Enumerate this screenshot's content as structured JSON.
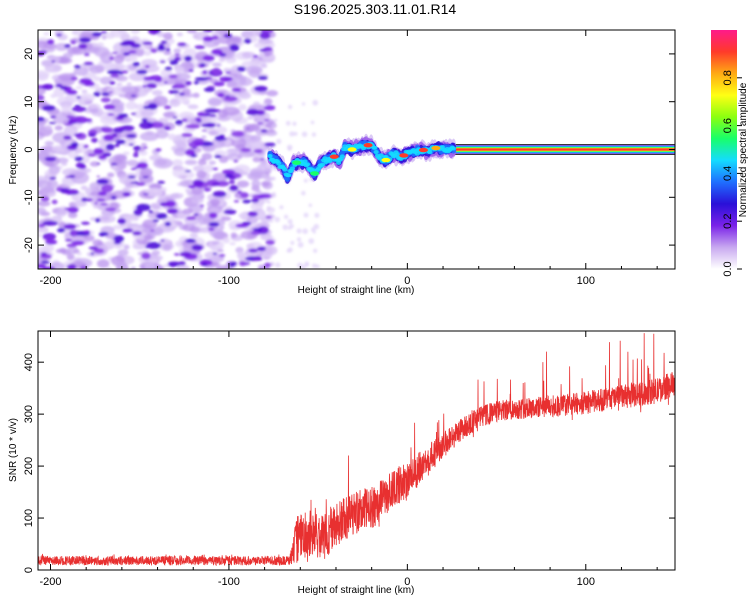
{
  "title": "S196.2025.303.11.01.R14",
  "chart_data": [
    {
      "type": "heatmap",
      "description_role": "spectrogram",
      "xlabel": "Height of straight line (km)",
      "ylabel": "Frequency (Hz)",
      "xlim": [
        -207,
        150
      ],
      "ylim": [
        -25,
        25
      ],
      "xticks": [
        -200,
        -100,
        0,
        100
      ],
      "yticks": [
        20,
        10,
        0,
        -10,
        -20
      ],
      "colorbar": {
        "label": "Normalized spectral amplitude",
        "range": [
          0,
          1
        ],
        "ticks": [
          0.0,
          0.2,
          0.4,
          0.6,
          0.8
        ],
        "tick_labels": [
          "0.0",
          "0.2",
          "0.4",
          "0.6",
          "0.8"
        ],
        "colors": [
          "#ffffff",
          "#c8a8f0",
          "#7a22e8",
          "#2a10d8",
          "#1f6fff",
          "#14dcff",
          "#18ff6a",
          "#8cff10",
          "#ffff14",
          "#ffaa14",
          "#ff3a2a",
          "#ff1a8a"
        ]
      },
      "noise_region_km": [
        -207,
        -78
      ],
      "carrier_ridge": [
        [
          -77,
          -1.5
        ],
        [
          -74,
          -2.2
        ],
        [
          -70,
          -3.5
        ],
        [
          -67,
          -6.0
        ],
        [
          -64,
          -3.0
        ],
        [
          -60,
          -2.5
        ],
        [
          -56,
          -3.0
        ],
        [
          -52,
          -5.0
        ],
        [
          -49,
          -3.0
        ],
        [
          -45,
          -2.0
        ],
        [
          -41,
          -1.5
        ],
        [
          -38,
          -2.5
        ],
        [
          -35,
          0.5
        ],
        [
          -31,
          0.0
        ],
        [
          -27,
          0.5
        ],
        [
          -24,
          1.0
        ],
        [
          -20,
          0.8
        ],
        [
          -16,
          -1.5
        ],
        [
          -12,
          -2.2
        ],
        [
          -8,
          -1.0
        ],
        [
          -4,
          -1.5
        ],
        [
          0,
          -1.0
        ],
        [
          4,
          -0.5
        ],
        [
          8,
          0.0
        ],
        [
          12,
          -0.5
        ],
        [
          16,
          0.3
        ],
        [
          20,
          0.0
        ],
        [
          24,
          0.0
        ],
        [
          150,
          0.0
        ]
      ]
    },
    {
      "type": "line",
      "xlabel": "Height of straight line (km)",
      "ylabel": "SNR (10 * v/v)",
      "xlim": [
        -207,
        150
      ],
      "ylim": [
        0,
        460
      ],
      "xticks": [
        -200,
        -100,
        0,
        100
      ],
      "yticks": [
        0,
        100,
        200,
        300,
        400
      ],
      "color": "#e83030",
      "trend": [
        [
          -207,
          18
        ],
        [
          -150,
          18
        ],
        [
          -100,
          18
        ],
        [
          -66,
          18
        ],
        [
          -62,
          60
        ],
        [
          -55,
          70
        ],
        [
          -48,
          60
        ],
        [
          -40,
          85
        ],
        [
          -30,
          110
        ],
        [
          -20,
          120
        ],
        [
          -10,
          150
        ],
        [
          0,
          175
        ],
        [
          10,
          205
        ],
        [
          20,
          240
        ],
        [
          30,
          270
        ],
        [
          40,
          293
        ],
        [
          50,
          305
        ],
        [
          60,
          310
        ],
        [
          70,
          312
        ],
        [
          80,
          315
        ],
        [
          90,
          318
        ],
        [
          100,
          322
        ],
        [
          110,
          328
        ],
        [
          120,
          333
        ],
        [
          130,
          338
        ],
        [
          140,
          345
        ],
        [
          150,
          360
        ]
      ],
      "noise_amplitude": [
        [
          -207,
          9
        ],
        [
          -66,
          9
        ],
        [
          -62,
          45
        ],
        [
          -40,
          45
        ],
        [
          -20,
          40
        ],
        [
          0,
          35
        ],
        [
          30,
          22
        ],
        [
          60,
          20
        ],
        [
          100,
          22
        ],
        [
          150,
          25
        ]
      ],
      "spike_amplitude": [
        [
          -207,
          10
        ],
        [
          -66,
          10
        ],
        [
          -62,
          60
        ],
        [
          -30,
          100
        ],
        [
          0,
          90
        ],
        [
          30,
          55
        ],
        [
          60,
          75
        ],
        [
          100,
          95
        ],
        [
          150,
          90
        ]
      ]
    }
  ]
}
